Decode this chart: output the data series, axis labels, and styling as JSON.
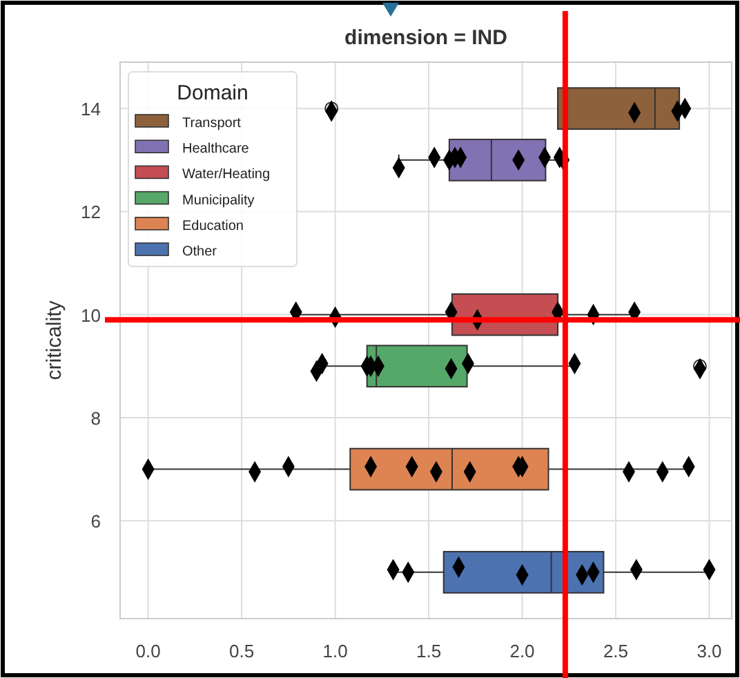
{
  "chart_data": {
    "type": "box",
    "orientation": "horizontal",
    "title": "dimension = IND",
    "ylabel": "criticality",
    "legend_title": "Domain",
    "legend": "top left",
    "grid": true,
    "xlim": [
      -0.15,
      3.12
    ],
    "xticks": [
      {
        "value": 0,
        "label": "0.0"
      },
      {
        "value": 0.5,
        "label": "0.5"
      },
      {
        "value": 1,
        "label": "1.0"
      },
      {
        "value": 1.5,
        "label": "1.5"
      },
      {
        "value": 2,
        "label": "2.0"
      },
      {
        "value": 2.5,
        "label": "2.5"
      },
      {
        "value": 3,
        "label": "3.0"
      }
    ],
    "ylim": [
      4.1,
      14.9
    ],
    "yticks": [
      6,
      8,
      10,
      12,
      14
    ],
    "series": [
      {
        "name": "Transport",
        "color": "#8c613c",
        "x": [
          14
        ],
        "boxes": [
          {
            "low": 2.19,
            "q1": 2.19,
            "median": 2.71,
            "q3": 2.84,
            "high": 2.84,
            "outliers": [
              0.98
            ]
          }
        ]
      },
      {
        "name": "Healthcare",
        "color": "#8172b3",
        "x": [
          13
        ],
        "boxes": [
          {
            "low": 1.34,
            "q1": 1.61,
            "median": 1.835,
            "q3": 2.125,
            "high": 2.22
          }
        ]
      },
      {
        "name": "Water/Heating",
        "color": "#c44e52",
        "x": [
          10
        ],
        "boxes": [
          {
            "low": 0.79,
            "q1": 1.625,
            "median": 2.19,
            "q3": 2.19,
            "high": 2.6
          }
        ]
      },
      {
        "name": "Municipality",
        "color": "#55a868",
        "x": [
          9
        ],
        "boxes": [
          {
            "low": 0.9,
            "q1": 1.17,
            "median": 1.22,
            "q3": 1.705,
            "high": 2.28,
            "outliers": [
              2.95
            ]
          }
        ]
      },
      {
        "name": "Education",
        "color": "#dd8452",
        "x": [
          7
        ],
        "boxes": [
          {
            "low": 0,
            "q1": 1.08,
            "median": 1.625,
            "q3": 2.14,
            "high": 2.89
          }
        ]
      },
      {
        "name": "Other",
        "color": "#4c72b0",
        "x": [
          5
        ],
        "boxes": [
          {
            "low": 1.31,
            "q1": 1.58,
            "median": 2.155,
            "q3": 2.435,
            "high": 3.0
          }
        ]
      },
      {
        "type": "scatter",
        "color": "#000000",
        "marker": "diamond",
        "values": [
          0.98,
          2.6,
          2.83,
          2.87,
          1.34,
          1.53,
          1.61,
          1.64,
          1.67,
          1.98,
          2.12,
          2.2,
          2.22,
          0.79,
          1.0,
          1.62,
          1.76,
          2.19,
          2.38,
          2.6,
          0.9,
          0.93,
          1.17,
          1.19,
          1.23,
          1.62,
          1.71,
          2.28,
          2.95,
          0,
          0.57,
          0.75,
          1.19,
          1.41,
          1.54,
          1.72,
          1.98,
          2.0,
          2.57,
          2.75,
          2.89,
          1.31,
          1.39,
          1.66,
          2.0,
          2.32,
          2.38,
          2.61,
          3.0
        ],
        "x": [
          13.95,
          13.92,
          13.95,
          14.0,
          12.85,
          13.05,
          13.0,
          13.05,
          13.05,
          13.0,
          13.05,
          13.05,
          13.0,
          10.05,
          9.95,
          10.05,
          9.9,
          10.05,
          10.0,
          10.05,
          8.9,
          9.05,
          9.0,
          9.0,
          9.0,
          8.95,
          9.05,
          9.05,
          8.95,
          7.0,
          6.95,
          7.05,
          7.05,
          7.05,
          6.95,
          6.95,
          7.05,
          7.05,
          6.95,
          6.95,
          7.05,
          5.05,
          5.0,
          5.1,
          4.95,
          4.95,
          5.0,
          5.05,
          5.05
        ]
      }
    ],
    "ref_lines": [
      {
        "axis": "x",
        "value": 2.23,
        "color": "#ff0000"
      },
      {
        "axis": "y",
        "value": 9.9,
        "color": "#ff0000"
      }
    ]
  }
}
